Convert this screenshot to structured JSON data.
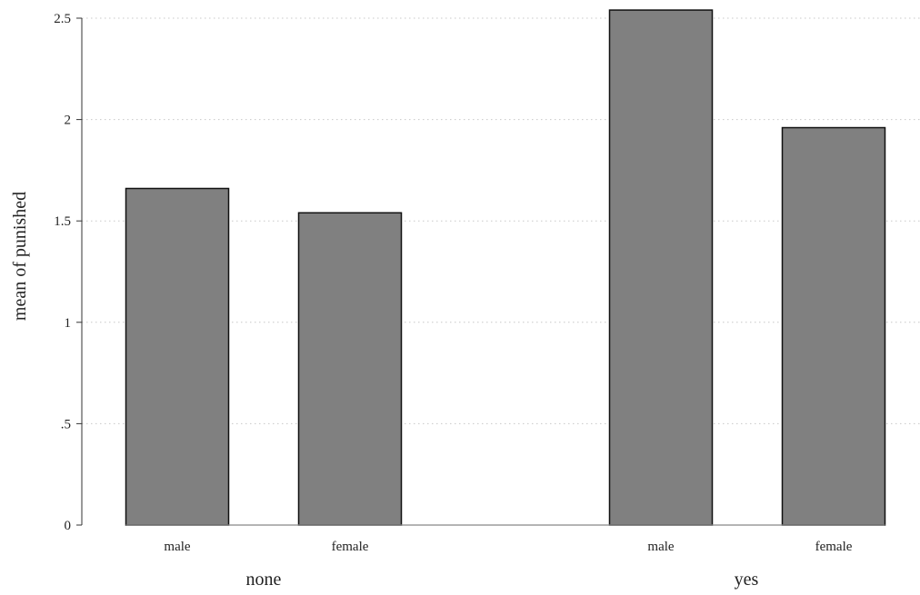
{
  "chart_data": {
    "type": "bar",
    "ylabel": "mean of punished",
    "ylim": [
      0,
      2.5
    ],
    "y_ticks": [
      {
        "value": 0,
        "label": "0"
      },
      {
        "value": 0.5,
        "label": ".5"
      },
      {
        "value": 1,
        "label": "1"
      },
      {
        "value": 1.5,
        "label": "1.5"
      },
      {
        "value": 2,
        "label": "2"
      },
      {
        "value": 2.5,
        "label": "2.5"
      }
    ],
    "grid": true,
    "groups": [
      {
        "name": "none",
        "categories": [
          "male",
          "female"
        ],
        "values": [
          1.66,
          1.54
        ]
      },
      {
        "name": "yes",
        "categories": [
          "male",
          "female"
        ],
        "values": [
          2.54,
          1.96
        ]
      }
    ],
    "bar_color": "#808080"
  }
}
